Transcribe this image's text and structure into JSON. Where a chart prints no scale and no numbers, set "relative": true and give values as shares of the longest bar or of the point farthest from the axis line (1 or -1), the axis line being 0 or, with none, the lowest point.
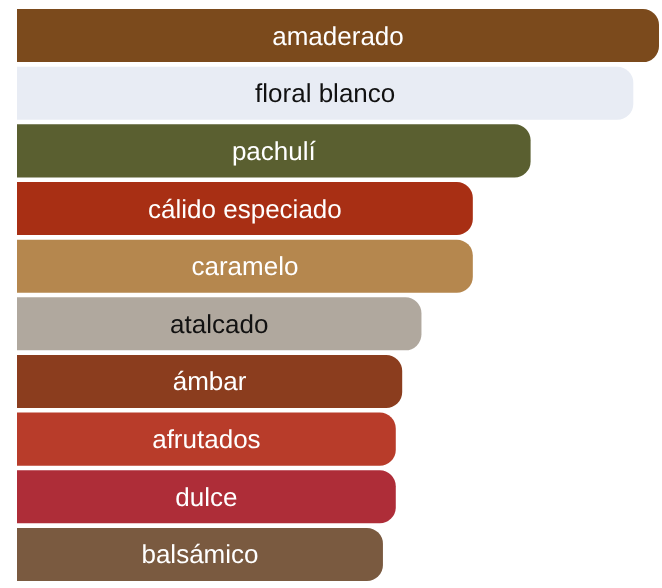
{
  "chart_data": {
    "type": "bar",
    "orientation": "horizontal",
    "relative": true,
    "categories": [
      "amaderado",
      "floral blanco",
      "pachulí",
      "cálido especiado",
      "caramelo",
      "atalcado",
      "ámbar",
      "afrutados",
      "dulce",
      "balsámico"
    ],
    "values": [
      1,
      0.96,
      0.8,
      0.71,
      0.71,
      0.63,
      0.6,
      0.59,
      0.59,
      0.57
    ],
    "colors": [
      "#7b4a1c",
      "#e8ecf4",
      "#5a5f30",
      "#a82f14",
      "#b5874e",
      "#b0a89e",
      "#8b3d1e",
      "#b83c2a",
      "#ae2d38",
      "#7a5a40"
    ]
  }
}
